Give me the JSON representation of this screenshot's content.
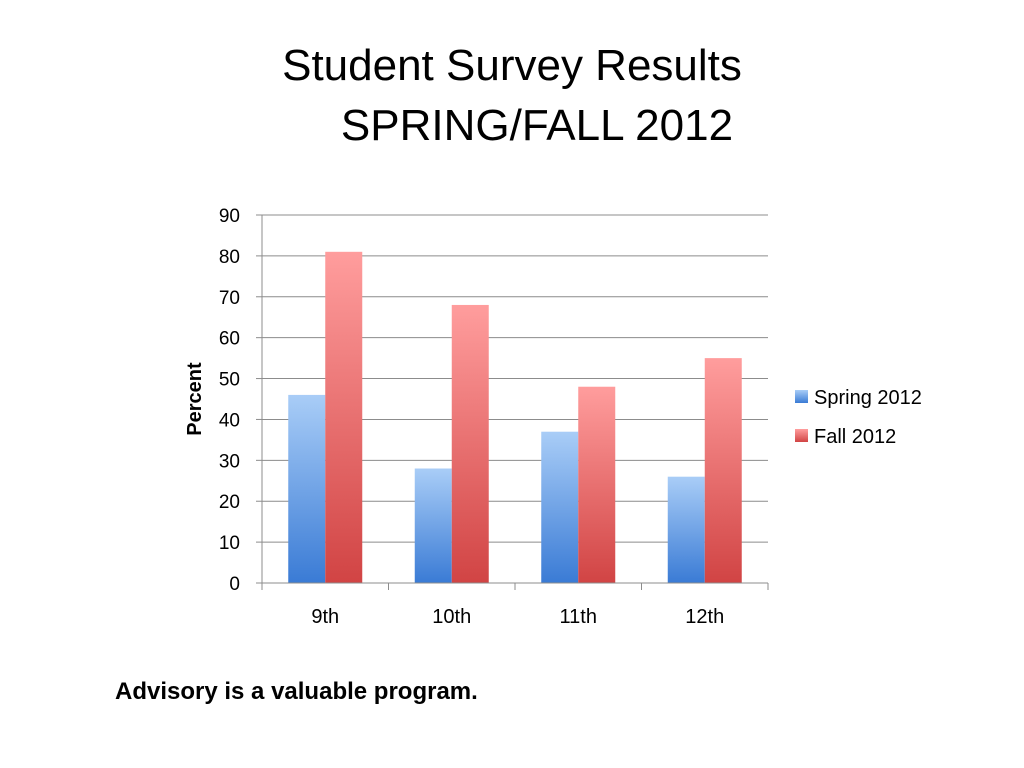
{
  "slide": {
    "title_line1": "Student Survey Results",
    "title_line2": "SPRING/FALL 2012",
    "caption": "Advisory is a valuable program."
  },
  "chart_data": {
    "type": "bar",
    "categories": [
      "9th",
      "10th",
      "11th",
      "12th"
    ],
    "series": [
      {
        "name": "Spring 2012",
        "values": [
          46,
          28,
          37,
          26
        ],
        "color_top": "#a9cdf7",
        "color_bottom": "#3a7bd5"
      },
      {
        "name": "Fall 2012",
        "values": [
          81,
          68,
          48,
          55
        ],
        "color_top": "#ff9d9d",
        "color_bottom": "#d14444"
      }
    ],
    "ylabel": "Percent",
    "ylim": [
      0,
      90
    ],
    "yticks": [
      0,
      10,
      20,
      30,
      40,
      50,
      60,
      70,
      80,
      90
    ],
    "grid": true,
    "legend_position": "right"
  }
}
